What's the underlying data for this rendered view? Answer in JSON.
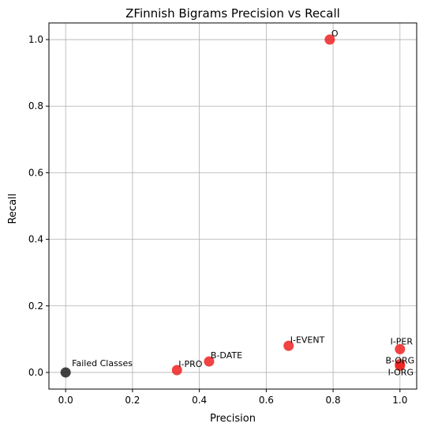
{
  "chart_data": {
    "type": "scatter",
    "title": "ZFinnish Bigrams Precision vs Recall",
    "xlabel": "Precision",
    "ylabel": "Recall",
    "xlim": [
      -0.05,
      1.05
    ],
    "ylim": [
      -0.05,
      1.05
    ],
    "xticks": [
      "0.0",
      "0.2",
      "0.4",
      "0.6",
      "0.8",
      "1.0"
    ],
    "yticks": [
      "0.0",
      "0.2",
      "0.4",
      "0.6",
      "0.8",
      "1.0"
    ],
    "grid": true,
    "points": [
      {
        "label": "O",
        "x": 0.79,
        "y": 1.0,
        "color": "#ee2222",
        "label_pos": "right"
      },
      {
        "label": "I-EVENT",
        "x": 0.667,
        "y": 0.08,
        "color": "#ee2222",
        "label_pos": "right"
      },
      {
        "label": "B-DATE",
        "x": 0.429,
        "y": 0.033,
        "color": "#ee2222",
        "label_pos": "right"
      },
      {
        "label": "I-PRO",
        "x": 0.333,
        "y": 0.007,
        "color": "#ee2222",
        "label_pos": "right"
      },
      {
        "label": "I-PER",
        "x": 1.0,
        "y": 0.07,
        "color": "#ee2222",
        "label_pos": "above"
      },
      {
        "label": "B-ORG",
        "x": 1.0,
        "y": 0.025,
        "color": "#ee2222",
        "label_pos": "center"
      },
      {
        "label": "I-ORG",
        "x": 1.0,
        "y": 0.02,
        "color": "#ee2222",
        "label_pos": "below"
      },
      {
        "label": "Failed Classes",
        "x": 0.0,
        "y": 0.0,
        "color": "#222222",
        "label_pos": "right"
      }
    ]
  }
}
